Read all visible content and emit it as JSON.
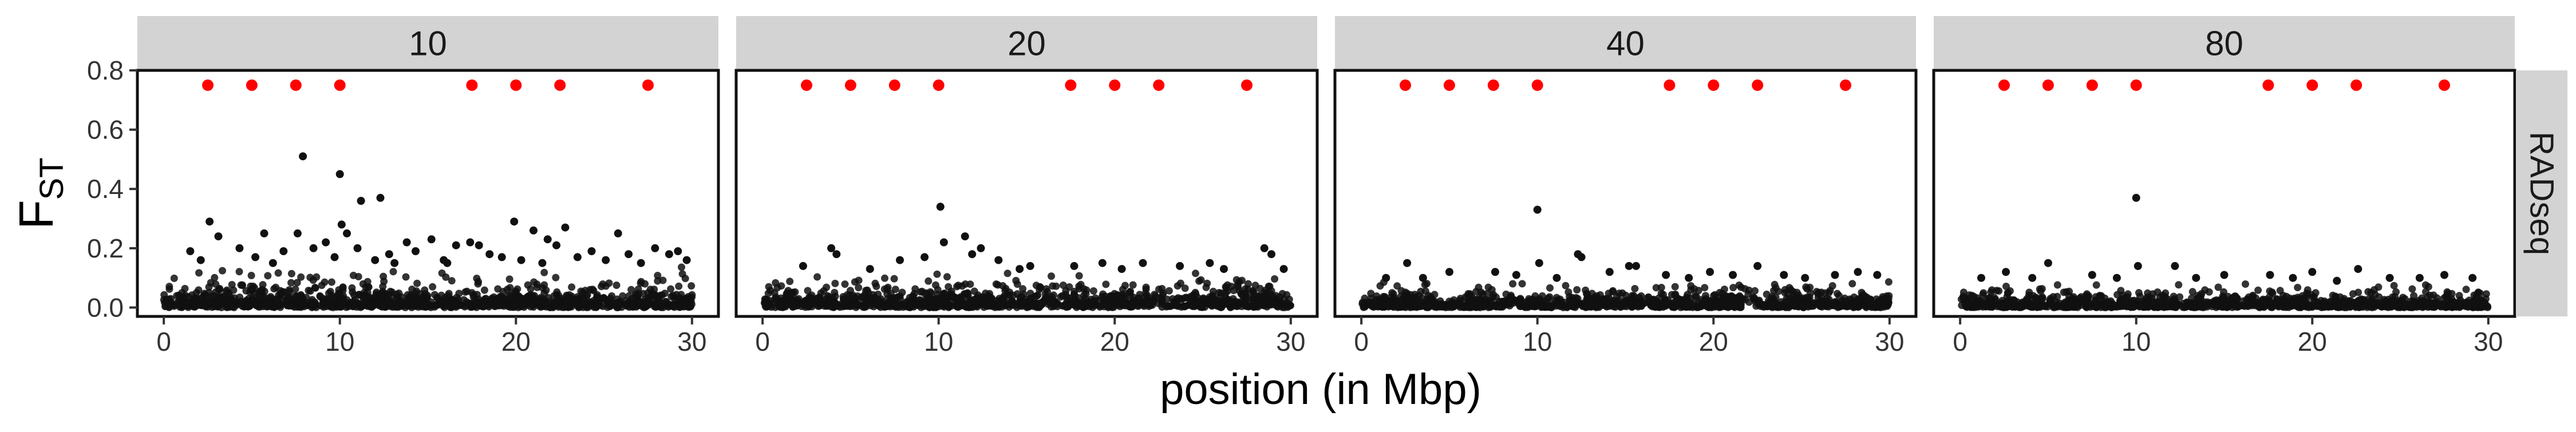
{
  "chart_data": {
    "type": "scatter",
    "xlabel": "position (in Mbp)",
    "ylabel_main": "F",
    "ylabel_sub": "ST",
    "xlim": [
      -1.5,
      31.5
    ],
    "ylim": [
      -0.03,
      0.8
    ],
    "xticks": [
      0,
      10,
      20,
      30
    ],
    "yticks": [
      0.0,
      0.2,
      0.4,
      0.6,
      0.8
    ],
    "ytick_labels": [
      "0.0",
      "0.2",
      "0.4",
      "0.6",
      "0.8"
    ],
    "row_strip": "RADseq",
    "grid": false,
    "legend": "none",
    "colors": {
      "points": "#111111",
      "highlight": "#ff0000",
      "strip_bg": "#d3d3d3",
      "panel_border": "#111111"
    },
    "highlight_series": {
      "x": [
        2.5,
        5,
        7.5,
        10,
        17.5,
        20,
        22.5,
        27.5
      ],
      "y": [
        0.75,
        0.75,
        0.75,
        0.75,
        0.75,
        0.75,
        0.75,
        0.75
      ]
    },
    "facets": [
      {
        "label": "10",
        "background": {
          "count": 1100,
          "mean": 0.045,
          "max": 0.14
        },
        "points": [
          {
            "x": 7.9,
            "y": 0.51
          },
          {
            "x": 10.0,
            "y": 0.45
          },
          {
            "x": 11.2,
            "y": 0.36
          },
          {
            "x": 12.3,
            "y": 0.37
          },
          {
            "x": 2.6,
            "y": 0.29
          },
          {
            "x": 10.1,
            "y": 0.28
          },
          {
            "x": 19.9,
            "y": 0.29
          },
          {
            "x": 22.8,
            "y": 0.27
          },
          {
            "x": 25.8,
            "y": 0.25
          },
          {
            "x": 10.4,
            "y": 0.25
          },
          {
            "x": 7.6,
            "y": 0.25
          },
          {
            "x": 21.0,
            "y": 0.26
          },
          {
            "x": 3.1,
            "y": 0.24
          },
          {
            "x": 5.7,
            "y": 0.25
          },
          {
            "x": 13.8,
            "y": 0.22
          },
          {
            "x": 15.2,
            "y": 0.23
          },
          {
            "x": 16.6,
            "y": 0.21
          },
          {
            "x": 17.4,
            "y": 0.22
          },
          {
            "x": 17.9,
            "y": 0.21
          },
          {
            "x": 21.8,
            "y": 0.23
          },
          {
            "x": 22.3,
            "y": 0.21
          },
          {
            "x": 9.2,
            "y": 0.22
          },
          {
            "x": 11.0,
            "y": 0.2
          },
          {
            "x": 4.3,
            "y": 0.2
          },
          {
            "x": 1.5,
            "y": 0.19
          },
          {
            "x": 6.8,
            "y": 0.19
          },
          {
            "x": 8.5,
            "y": 0.2
          },
          {
            "x": 12.8,
            "y": 0.18
          },
          {
            "x": 14.3,
            "y": 0.19
          },
          {
            "x": 18.5,
            "y": 0.18
          },
          {
            "x": 24.3,
            "y": 0.19
          },
          {
            "x": 26.4,
            "y": 0.18
          },
          {
            "x": 27.9,
            "y": 0.2
          },
          {
            "x": 28.7,
            "y": 0.18
          },
          {
            "x": 29.2,
            "y": 0.19
          },
          {
            "x": 23.5,
            "y": 0.17
          },
          {
            "x": 20.3,
            "y": 0.16
          },
          {
            "x": 19.2,
            "y": 0.17
          },
          {
            "x": 2.1,
            "y": 0.16
          },
          {
            "x": 5.2,
            "y": 0.17
          },
          {
            "x": 9.7,
            "y": 0.17
          },
          {
            "x": 12.0,
            "y": 0.16
          },
          {
            "x": 15.9,
            "y": 0.16
          },
          {
            "x": 25.1,
            "y": 0.16
          },
          {
            "x": 27.1,
            "y": 0.15
          },
          {
            "x": 29.7,
            "y": 0.16
          },
          {
            "x": 6.2,
            "y": 0.15
          },
          {
            "x": 13.1,
            "y": 0.15
          },
          {
            "x": 16.1,
            "y": 0.15
          },
          {
            "x": 21.5,
            "y": 0.15
          }
        ]
      },
      {
        "label": "20",
        "background": {
          "count": 1100,
          "mean": 0.04,
          "max": 0.12
        },
        "points": [
          {
            "x": 10.1,
            "y": 0.34
          },
          {
            "x": 11.5,
            "y": 0.24
          },
          {
            "x": 10.3,
            "y": 0.22
          },
          {
            "x": 12.4,
            "y": 0.2
          },
          {
            "x": 3.9,
            "y": 0.2
          },
          {
            "x": 28.5,
            "y": 0.2
          },
          {
            "x": 28.9,
            "y": 0.18
          },
          {
            "x": 4.2,
            "y": 0.18
          },
          {
            "x": 9.2,
            "y": 0.17
          },
          {
            "x": 11.9,
            "y": 0.18
          },
          {
            "x": 7.8,
            "y": 0.16
          },
          {
            "x": 13.4,
            "y": 0.16
          },
          {
            "x": 19.3,
            "y": 0.15
          },
          {
            "x": 21.6,
            "y": 0.15
          },
          {
            "x": 2.3,
            "y": 0.14
          },
          {
            "x": 25.4,
            "y": 0.15
          },
          {
            "x": 15.2,
            "y": 0.14
          },
          {
            "x": 17.7,
            "y": 0.14
          },
          {
            "x": 23.7,
            "y": 0.14
          },
          {
            "x": 26.2,
            "y": 0.13
          },
          {
            "x": 6.1,
            "y": 0.13
          },
          {
            "x": 14.6,
            "y": 0.13
          },
          {
            "x": 20.4,
            "y": 0.13
          },
          {
            "x": 29.6,
            "y": 0.13
          }
        ]
      },
      {
        "label": "40",
        "background": {
          "count": 1100,
          "mean": 0.03,
          "max": 0.09
        },
        "points": [
          {
            "x": 10.0,
            "y": 0.33
          },
          {
            "x": 12.3,
            "y": 0.18
          },
          {
            "x": 12.5,
            "y": 0.17
          },
          {
            "x": 2.6,
            "y": 0.15
          },
          {
            "x": 10.1,
            "y": 0.15
          },
          {
            "x": 15.2,
            "y": 0.14
          },
          {
            "x": 15.6,
            "y": 0.14
          },
          {
            "x": 22.5,
            "y": 0.14
          },
          {
            "x": 5.0,
            "y": 0.12
          },
          {
            "x": 7.6,
            "y": 0.12
          },
          {
            "x": 8.8,
            "y": 0.11
          },
          {
            "x": 14.1,
            "y": 0.12
          },
          {
            "x": 17.3,
            "y": 0.11
          },
          {
            "x": 19.8,
            "y": 0.12
          },
          {
            "x": 21.1,
            "y": 0.11
          },
          {
            "x": 24.0,
            "y": 0.11
          },
          {
            "x": 26.9,
            "y": 0.11
          },
          {
            "x": 28.2,
            "y": 0.12
          },
          {
            "x": 29.3,
            "y": 0.11
          },
          {
            "x": 1.4,
            "y": 0.1
          },
          {
            "x": 3.5,
            "y": 0.1
          },
          {
            "x": 11.1,
            "y": 0.1
          },
          {
            "x": 18.6,
            "y": 0.1
          },
          {
            "x": 25.2,
            "y": 0.1
          }
        ]
      },
      {
        "label": "80",
        "background": {
          "count": 1100,
          "mean": 0.025,
          "max": 0.08
        },
        "points": [
          {
            "x": 10.0,
            "y": 0.37
          },
          {
            "x": 5.0,
            "y": 0.15
          },
          {
            "x": 12.2,
            "y": 0.14
          },
          {
            "x": 10.1,
            "y": 0.14
          },
          {
            "x": 22.6,
            "y": 0.13
          },
          {
            "x": 2.6,
            "y": 0.12
          },
          {
            "x": 7.5,
            "y": 0.11
          },
          {
            "x": 15.0,
            "y": 0.11
          },
          {
            "x": 17.6,
            "y": 0.11
          },
          {
            "x": 20.0,
            "y": 0.12
          },
          {
            "x": 27.5,
            "y": 0.11
          },
          {
            "x": 1.2,
            "y": 0.1
          },
          {
            "x": 4.1,
            "y": 0.1
          },
          {
            "x": 8.9,
            "y": 0.1
          },
          {
            "x": 13.4,
            "y": 0.1
          },
          {
            "x": 18.9,
            "y": 0.1
          },
          {
            "x": 24.4,
            "y": 0.1
          },
          {
            "x": 26.1,
            "y": 0.1
          },
          {
            "x": 29.1,
            "y": 0.1
          },
          {
            "x": 21.4,
            "y": 0.09
          }
        ]
      }
    ]
  }
}
